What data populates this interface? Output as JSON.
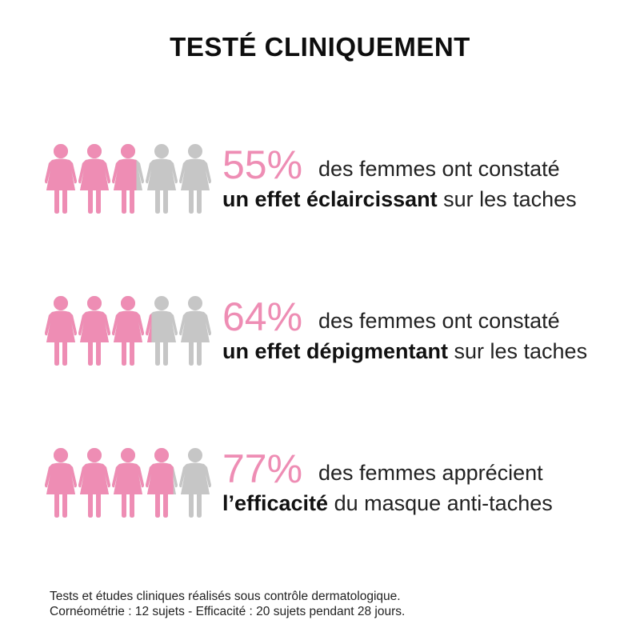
{
  "colors": {
    "accent": "#ee8db4",
    "inactive": "#c6c6c6",
    "text": "#1a1a1a"
  },
  "header": {
    "title": "TESTÉ CLINIQUEMENT"
  },
  "stats": [
    {
      "percent": "55%",
      "fraction": 0.55,
      "line1": "des femmes ont constaté",
      "bold": "un effet éclaircissant",
      "rest": " sur les taches"
    },
    {
      "percent": "64%",
      "fraction": 0.64,
      "line1": "des femmes ont constaté",
      "bold": "un effet dépigmentant",
      "rest": " sur les taches"
    },
    {
      "percent": "77%",
      "fraction": 0.77,
      "line1": "des femmes apprécient",
      "bold": "l’efficacité",
      "rest": " du masque anti-taches"
    }
  ],
  "footnote": {
    "line1": "Tests et études cliniques réalisés sous contrôle dermatologique.",
    "line2": "Cornéométrie : 12 sujets - Efficacité : 20 sujets pendant 28 jours."
  }
}
